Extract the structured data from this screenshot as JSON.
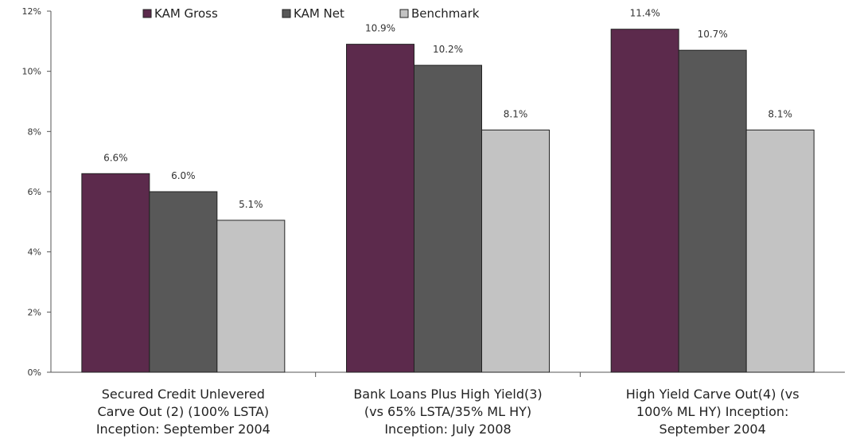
{
  "chart_data": {
    "type": "bar",
    "categories": [
      [
        "Secured Credit Unlevered",
        "Carve Out (2) (100% LSTA)",
        "Inception: September 2004"
      ],
      [
        "Bank Loans Plus High Yield(3)",
        "(vs 65% LSTA/35% ML HY)",
        "Inception: July 2008"
      ],
      [
        "High Yield Carve Out(4) (vs",
        "100% ML HY) Inception:",
        "September 2004"
      ]
    ],
    "series": [
      {
        "name": "KAM Gross",
        "color": "#5c2a4c",
        "values": [
          6.6,
          10.9,
          11.4
        ],
        "labels": [
          "6.6%",
          "10.9%",
          "11.4%"
        ]
      },
      {
        "name": "KAM Net",
        "color": "#585858",
        "values": [
          6.0,
          10.2,
          10.7
        ],
        "labels": [
          "6.0%",
          "10.2%",
          "10.7%"
        ]
      },
      {
        "name": "Benchmark",
        "color": "#c3c3c3",
        "values": [
          5.05,
          8.05,
          8.05
        ],
        "labels": [
          "5.1%",
          "8.1%",
          "8.1%"
        ]
      }
    ],
    "ylim": [
      0,
      12
    ],
    "yticks": [
      0,
      2,
      4,
      6,
      8,
      10,
      12
    ],
    "ytick_labels": [
      "0%",
      "2%",
      "4%",
      "6%",
      "8%",
      "10%",
      "12%"
    ],
    "grid": false,
    "legend_position": "top"
  }
}
